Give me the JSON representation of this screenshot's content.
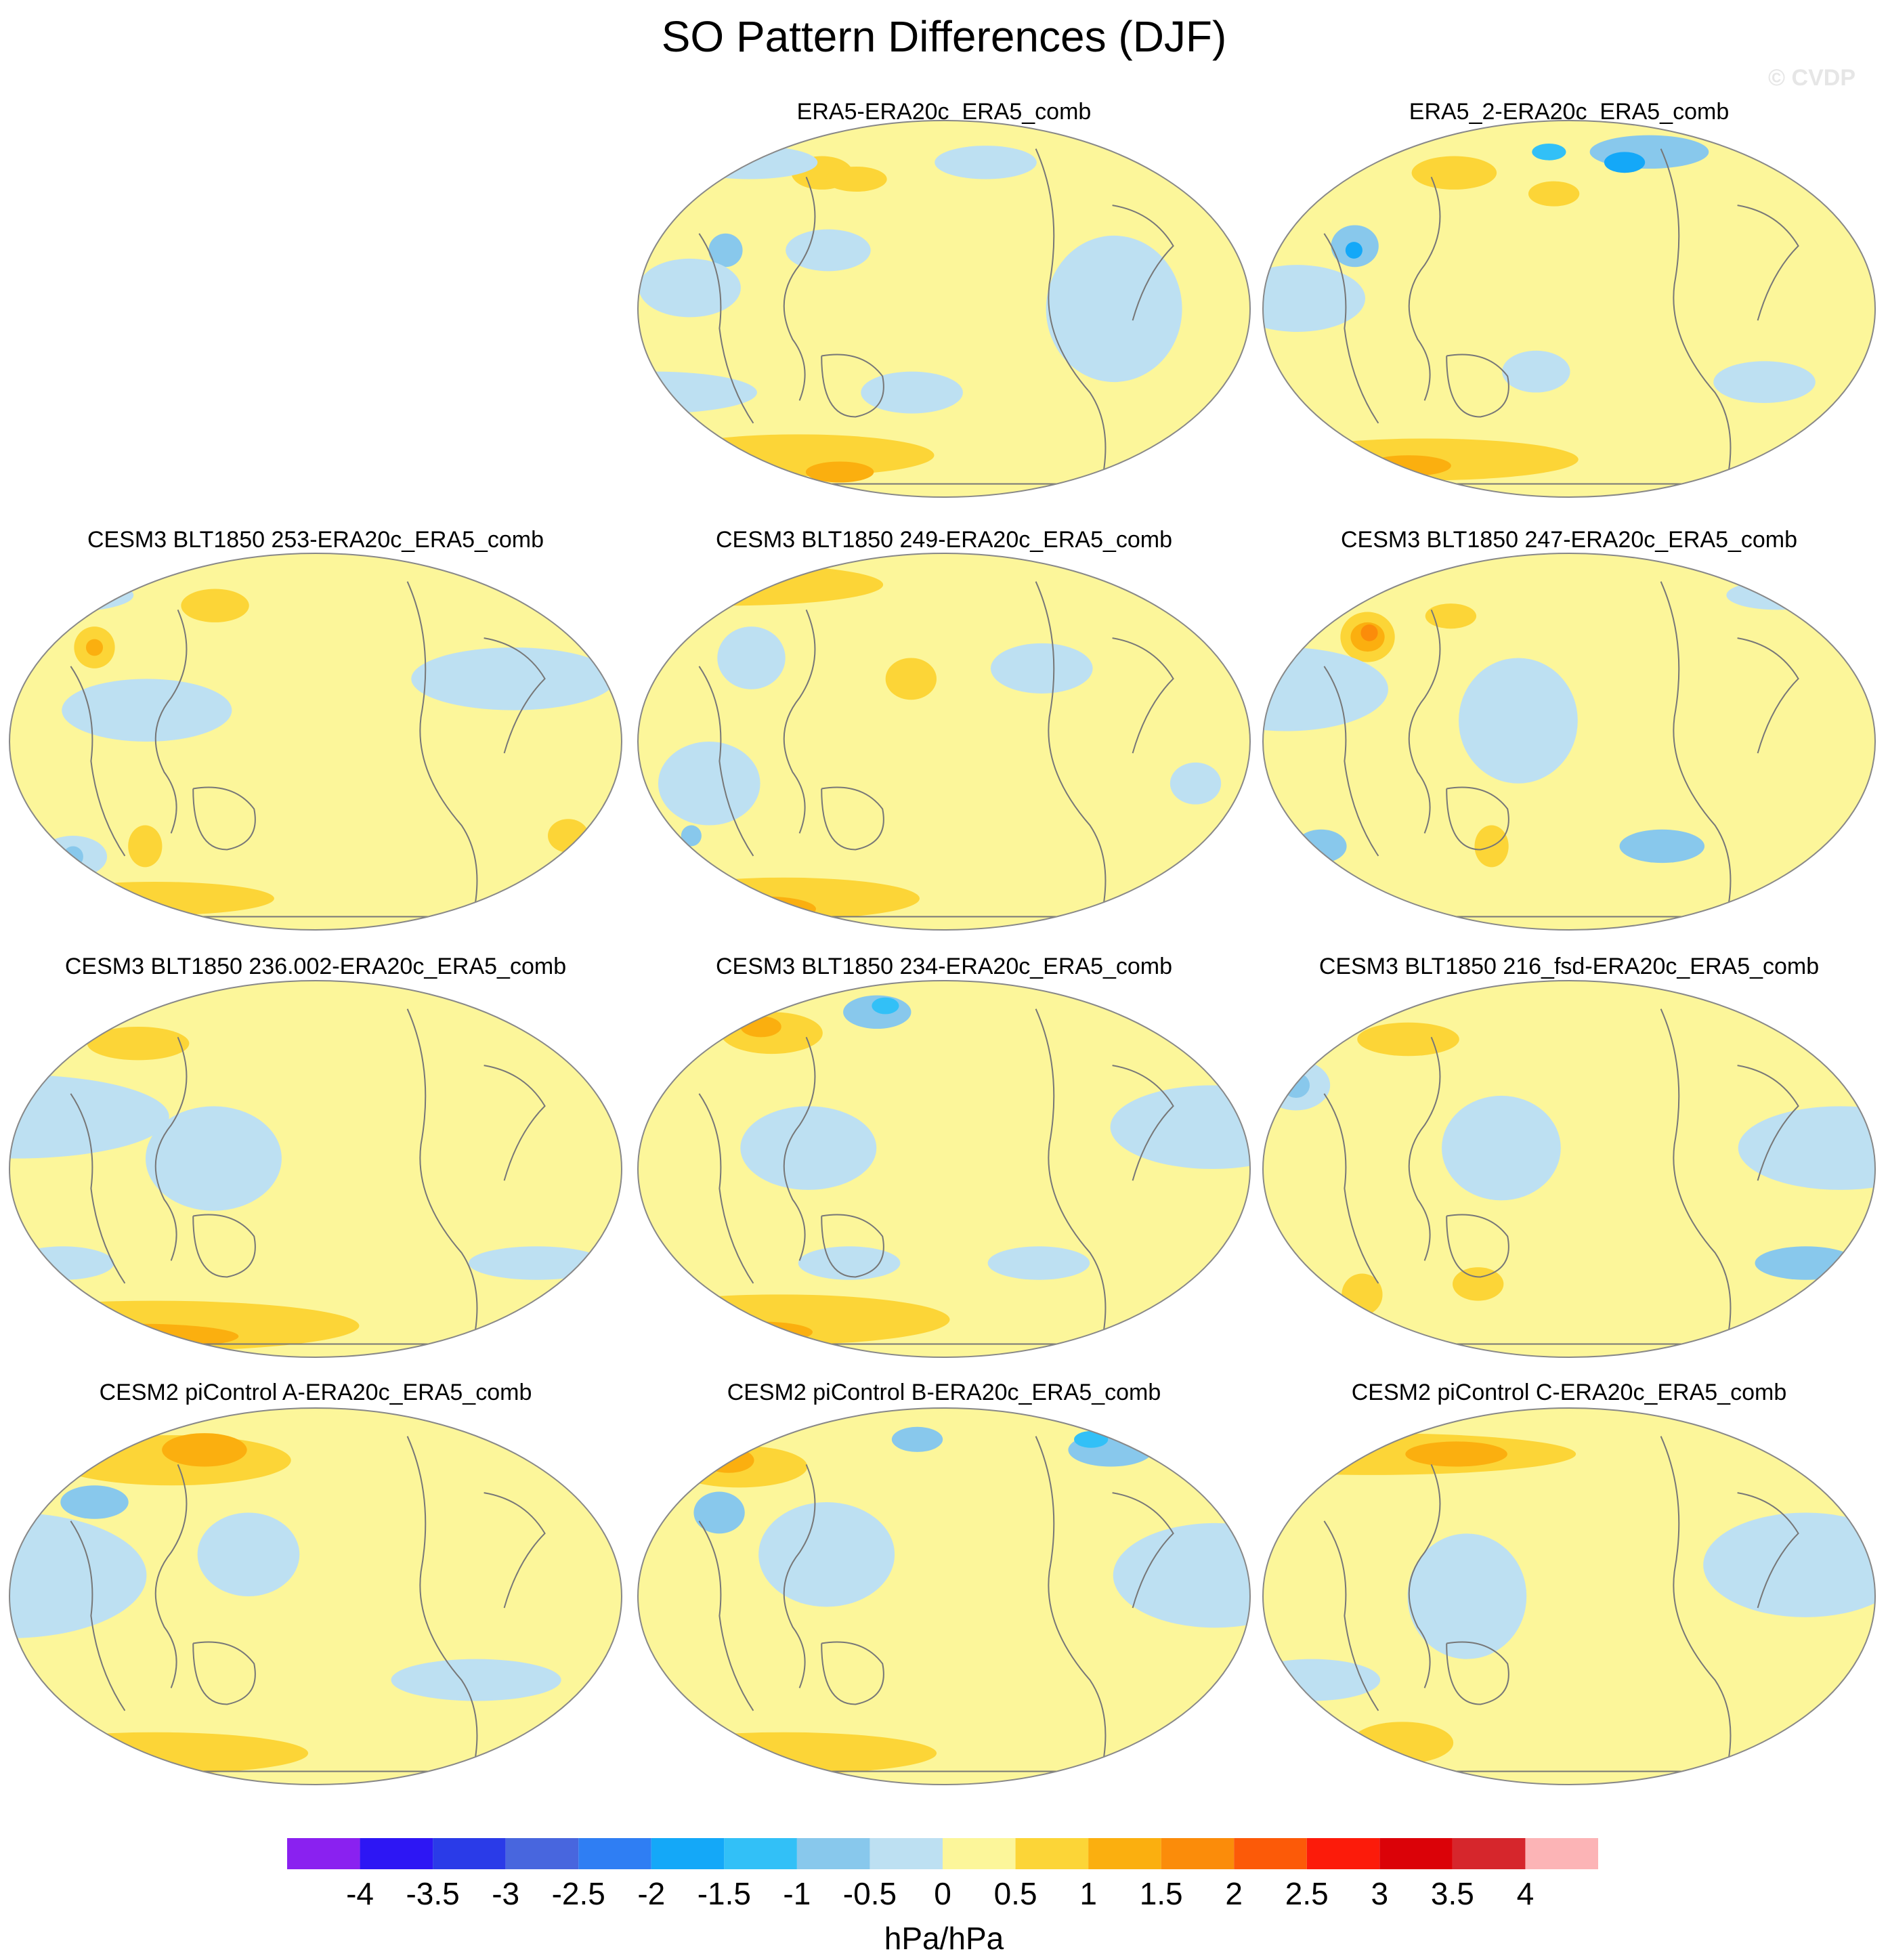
{
  "title": "SO Pattern Differences (DJF)",
  "watermark": "© CVDP",
  "chart_data": {
    "type": "contour-map-panel",
    "projection": "Robinson (Pacific-centered)",
    "season": "DJF",
    "variable": "SO pattern difference",
    "panels": [
      {
        "name": "ERA5-ERA20c_ERA5_comb",
        "row": 0,
        "col": 1,
        "blobs": [
          {
            "lon": 95,
            "lat": 65,
            "rx": 18,
            "ry": 8,
            "level": 0.75
          },
          {
            "lon": 120,
            "lat": 62,
            "rx": 18,
            "ry": 6,
            "level": 0.75
          },
          {
            "lon": 75,
            "lat": -70,
            "rx": 80,
            "ry": 10,
            "level": 0.75
          },
          {
            "lon": 100,
            "lat": -78,
            "rx": 20,
            "ry": 5,
            "level": 1.25
          },
          {
            "lon": 40,
            "lat": 70,
            "rx": 40,
            "ry": 8,
            "level": -0.25
          },
          {
            "lon": -150,
            "lat": 70,
            "rx": 30,
            "ry": 8,
            "level": -0.25
          },
          {
            "lon": 48,
            "lat": 28,
            "rx": 10,
            "ry": 8,
            "level": -0.75
          },
          {
            "lon": 110,
            "lat": 28,
            "rx": 25,
            "ry": 10,
            "level": -0.25
          },
          {
            "lon": 30,
            "lat": 10,
            "rx": 30,
            "ry": 14,
            "level": -0.25
          },
          {
            "lon": -80,
            "lat": 0,
            "rx": 40,
            "ry": 35,
            "level": -0.25
          },
          {
            "lon": 0,
            "lat": -40,
            "rx": 60,
            "ry": 10,
            "level": -0.25
          },
          {
            "lon": 160,
            "lat": -40,
            "rx": 30,
            "ry": 10,
            "level": -0.25
          }
        ]
      },
      {
        "name": "ERA5_2-ERA20c_ERA5_comb",
        "row": 0,
        "col": 2,
        "blobs": [
          {
            "lon": 100,
            "lat": 65,
            "rx": 25,
            "ry": 8,
            "level": 0.75
          },
          {
            "lon": 170,
            "lat": 55,
            "rx": 15,
            "ry": 6,
            "level": 0.75
          },
          {
            "lon": 75,
            "lat": -72,
            "rx": 90,
            "ry": 10,
            "level": 0.75
          },
          {
            "lon": 60,
            "lat": -75,
            "rx": 25,
            "ry": 5,
            "level": 1.25
          },
          {
            "lon": -120,
            "lat": 75,
            "rx": 35,
            "ry": 8,
            "level": -0.75
          },
          {
            "lon": -140,
            "lat": 70,
            "rx": 12,
            "ry": 5,
            "level": -1.75
          },
          {
            "lon": 165,
            "lat": 75,
            "rx": 10,
            "ry": 4,
            "level": -1.25
          },
          {
            "lon": 50,
            "lat": 30,
            "rx": 14,
            "ry": 10,
            "level": -0.75
          },
          {
            "lon": 50,
            "lat": 28,
            "rx": 5,
            "ry": 4,
            "level": -1.75
          },
          {
            "lon": 20,
            "lat": 5,
            "rx": 40,
            "ry": 16,
            "level": -0.25
          },
          {
            "lon": -60,
            "lat": -35,
            "rx": 30,
            "ry": 10,
            "level": -0.25
          },
          {
            "lon": 160,
            "lat": -30,
            "rx": 20,
            "ry": 10,
            "level": -0.25
          }
        ]
      },
      {
        "name": "CESM3 BLT1850 253-ERA20c_ERA5_comb",
        "row": 1,
        "col": 0,
        "blobs": [
          {
            "lon": 40,
            "lat": 45,
            "rx": 12,
            "ry": 10,
            "level": 0.75
          },
          {
            "lon": 40,
            "lat": 45,
            "rx": 5,
            "ry": 4,
            "level": 1.25
          },
          {
            "lon": 110,
            "lat": 65,
            "rx": 20,
            "ry": 8,
            "level": 0.75
          },
          {
            "lon": 60,
            "lat": -75,
            "rx": 70,
            "ry": 8,
            "level": 0.75
          },
          {
            "lon": -20,
            "lat": -45,
            "rx": 12,
            "ry": 8,
            "level": 0.75
          },
          {
            "lon": 70,
            "lat": -50,
            "rx": 10,
            "ry": 10,
            "level": 0.75
          },
          {
            "lon": 0,
            "lat": 70,
            "rx": 40,
            "ry": 8,
            "level": -0.25
          },
          {
            "lon": -30,
            "lat": 85,
            "rx": 8,
            "ry": 3,
            "level": -1.25
          },
          {
            "lon": -60,
            "lat": 30,
            "rx": 60,
            "ry": 15,
            "level": -0.25
          },
          {
            "lon": 80,
            "lat": 15,
            "rx": 50,
            "ry": 15,
            "level": -0.25
          },
          {
            "lon": 20,
            "lat": -55,
            "rx": 20,
            "ry": 10,
            "level": -0.25
          },
          {
            "lon": 20,
            "lat": -55,
            "rx": 6,
            "ry": 5,
            "level": -0.75
          }
        ]
      },
      {
        "name": "CESM3 BLT1850 249-ERA20c_ERA5_comb",
        "row": 1,
        "col": 1,
        "blobs": [
          {
            "lon": 20,
            "lat": 75,
            "rx": 90,
            "ry": 10,
            "level": 0.75
          },
          {
            "lon": 60,
            "lat": -75,
            "rx": 80,
            "ry": 10,
            "level": 0.75
          },
          {
            "lon": 40,
            "lat": -80,
            "rx": 30,
            "ry": 6,
            "level": 1.25
          },
          {
            "lon": 160,
            "lat": 30,
            "rx": 15,
            "ry": 10,
            "level": 0.75
          },
          {
            "lon": -120,
            "lat": 35,
            "rx": 30,
            "ry": 12,
            "level": -0.25
          },
          {
            "lon": 60,
            "lat": 40,
            "rx": 20,
            "ry": 15,
            "level": -0.25
          },
          {
            "lon": 40,
            "lat": -20,
            "rx": 30,
            "ry": 20,
            "level": -0.25
          },
          {
            "lon": 20,
            "lat": -45,
            "rx": 6,
            "ry": 5,
            "level": -0.75
          },
          {
            "lon": -30,
            "lat": -20,
            "rx": 15,
            "ry": 10,
            "level": -0.25
          }
        ]
      },
      {
        "name": "CESM3 BLT1850 247-ERA20c_ERA5_comb",
        "row": 1,
        "col": 2,
        "blobs": [
          {
            "lon": 50,
            "lat": 50,
            "rx": 16,
            "ry": 12,
            "level": 0.75
          },
          {
            "lon": 50,
            "lat": 50,
            "rx": 10,
            "ry": 7,
            "level": 1.25
          },
          {
            "lon": 50,
            "lat": 52,
            "rx": 5,
            "ry": 4,
            "level": 1.75
          },
          {
            "lon": 100,
            "lat": 60,
            "rx": 15,
            "ry": 6,
            "level": 0.75
          },
          {
            "lon": 130,
            "lat": -50,
            "rx": 10,
            "ry": 10,
            "level": 0.75
          },
          {
            "lon": -30,
            "lat": 70,
            "rx": 30,
            "ry": 7,
            "level": -0.25
          },
          {
            "lon": 10,
            "lat": 25,
            "rx": 60,
            "ry": 20,
            "level": -0.25
          },
          {
            "lon": 150,
            "lat": 10,
            "rx": 35,
            "ry": 30,
            "level": -0.25
          },
          {
            "lon": -120,
            "lat": -50,
            "rx": 25,
            "ry": 8,
            "level": -0.75
          },
          {
            "lon": 20,
            "lat": -50,
            "rx": 15,
            "ry": 8,
            "level": -0.75
          }
        ]
      },
      {
        "name": "CESM3 BLT1850 236.002-ERA20c_ERA5_comb",
        "row": 2,
        "col": 0,
        "blobs": [
          {
            "lon": 60,
            "lat": -75,
            "rx": 120,
            "ry": 12,
            "level": 0.75
          },
          {
            "lon": 40,
            "lat": -80,
            "rx": 60,
            "ry": 6,
            "level": 1.25
          },
          {
            "lon": 60,
            "lat": 60,
            "rx": 30,
            "ry": 8,
            "level": 0.75
          },
          {
            "lon": 0,
            "lat": 78,
            "rx": 30,
            "ry": 5,
            "level": -0.75
          },
          {
            "lon": 0,
            "lat": 25,
            "rx": 90,
            "ry": 20,
            "level": -0.25
          },
          {
            "lon": 120,
            "lat": 5,
            "rx": 40,
            "ry": 25,
            "level": -0.25
          },
          {
            "lon": -40,
            "lat": -45,
            "rx": 40,
            "ry": 8,
            "level": -0.25
          },
          {
            "lon": 20,
            "lat": -45,
            "rx": 30,
            "ry": 8,
            "level": -0.25
          }
        ]
      },
      {
        "name": "CESM3 BLT1850 234-ERA20c_ERA5_comb",
        "row": 2,
        "col": 1,
        "blobs": [
          {
            "lon": 60,
            "lat": 65,
            "rx": 30,
            "ry": 10,
            "level": 0.75
          },
          {
            "lon": 50,
            "lat": 68,
            "rx": 12,
            "ry": 5,
            "level": 1.25
          },
          {
            "lon": 60,
            "lat": -72,
            "rx": 100,
            "ry": 12,
            "level": 0.75
          },
          {
            "lon": 40,
            "lat": -78,
            "rx": 30,
            "ry": 5,
            "level": 1.25
          },
          {
            "lon": 130,
            "lat": 75,
            "rx": 20,
            "ry": 8,
            "level": -0.75
          },
          {
            "lon": 135,
            "lat": 78,
            "rx": 8,
            "ry": 4,
            "level": -1.25
          },
          {
            "lon": -20,
            "lat": 20,
            "rx": 60,
            "ry": 20,
            "level": -0.25
          },
          {
            "lon": 100,
            "lat": 10,
            "rx": 40,
            "ry": 20,
            "level": -0.25
          },
          {
            "lon": -120,
            "lat": -45,
            "rx": 30,
            "ry": 8,
            "level": -0.25
          },
          {
            "lon": 120,
            "lat": -45,
            "rx": 30,
            "ry": 8,
            "level": -0.25
          }
        ]
      },
      {
        "name": "CESM3 BLT1850 216_fsd-ERA20c_ERA5_comb",
        "row": 2,
        "col": 2,
        "blobs": [
          {
            "lon": 70,
            "lat": 62,
            "rx": 30,
            "ry": 8,
            "level": 0.75
          },
          {
            "lon": 40,
            "lat": -60,
            "rx": 12,
            "ry": 10,
            "level": 0.75
          },
          {
            "lon": 120,
            "lat": -55,
            "rx": 15,
            "ry": 8,
            "level": 0.75
          },
          {
            "lon": 10,
            "lat": 40,
            "rx": 20,
            "ry": 12,
            "level": -0.25
          },
          {
            "lon": 10,
            "lat": 40,
            "rx": 8,
            "ry": 6,
            "level": -0.75
          },
          {
            "lon": -20,
            "lat": 10,
            "rx": 60,
            "ry": 20,
            "level": -0.25
          },
          {
            "lon": -30,
            "lat": -45,
            "rx": 30,
            "ry": 8,
            "level": -0.75
          },
          {
            "lon": 140,
            "lat": 10,
            "rx": 35,
            "ry": 25,
            "level": -0.25
          }
        ]
      },
      {
        "name": "CESM2 piControl A-ERA20c_ERA5_comb",
        "row": 3,
        "col": 0,
        "blobs": [
          {
            "lon": 80,
            "lat": 65,
            "rx": 70,
            "ry": 12,
            "level": 0.75
          },
          {
            "lon": 100,
            "lat": 70,
            "rx": 25,
            "ry": 8,
            "level": 1.25
          },
          {
            "lon": 60,
            "lat": -75,
            "rx": 90,
            "ry": 10,
            "level": 0.75
          },
          {
            "lon": 40,
            "lat": 45,
            "rx": 20,
            "ry": 8,
            "level": -0.75
          },
          {
            "lon": 0,
            "lat": 10,
            "rx": 80,
            "ry": 30,
            "level": -0.25
          },
          {
            "lon": 140,
            "lat": 20,
            "rx": 30,
            "ry": 20,
            "level": -0.25
          },
          {
            "lon": -80,
            "lat": -40,
            "rx": 50,
            "ry": 10,
            "level": -0.25
          }
        ]
      },
      {
        "name": "CESM2 piControl B-ERA20c_ERA5_comb",
        "row": 3,
        "col": 1,
        "blobs": [
          {
            "lon": 40,
            "lat": 62,
            "rx": 40,
            "ry": 10,
            "level": 0.75
          },
          {
            "lon": 30,
            "lat": 65,
            "rx": 15,
            "ry": 6,
            "level": 1.25
          },
          {
            "lon": 60,
            "lat": -75,
            "rx": 90,
            "ry": 10,
            "level": 0.75
          },
          {
            "lon": -60,
            "lat": 70,
            "rx": 25,
            "ry": 8,
            "level": -0.75
          },
          {
            "lon": -70,
            "lat": 75,
            "rx": 10,
            "ry": 4,
            "level": -1.25
          },
          {
            "lon": 160,
            "lat": 75,
            "rx": 15,
            "ry": 6,
            "level": -0.75
          },
          {
            "lon": 40,
            "lat": 40,
            "rx": 15,
            "ry": 10,
            "level": -0.75
          },
          {
            "lon": -20,
            "lat": 10,
            "rx": 60,
            "ry": 25,
            "level": -0.25
          },
          {
            "lon": 110,
            "lat": 20,
            "rx": 40,
            "ry": 25,
            "level": -0.25
          }
        ]
      },
      {
        "name": "CESM2 piControl C-ERA20c_ERA5_comb",
        "row": 3,
        "col": 2,
        "blobs": [
          {
            "lon": 40,
            "lat": 68,
            "rx": 120,
            "ry": 10,
            "level": 0.75
          },
          {
            "lon": 100,
            "lat": 68,
            "rx": 30,
            "ry": 6,
            "level": 1.25
          },
          {
            "lon": 60,
            "lat": -70,
            "rx": 30,
            "ry": 10,
            "level": 0.75
          },
          {
            "lon": -40,
            "lat": 15,
            "rx": 60,
            "ry": 25,
            "level": -0.25
          },
          {
            "lon": 120,
            "lat": 0,
            "rx": 35,
            "ry": 30,
            "level": -0.25
          },
          {
            "lon": 20,
            "lat": -40,
            "rx": 40,
            "ry": 10,
            "level": -0.25
          }
        ]
      }
    ],
    "colorbar": {
      "label": "hPa/hPa",
      "tick_labels": [
        "-4",
        "-3.5",
        "-3",
        "-2.5",
        "-2",
        "-1.5",
        "-1",
        "-0.5",
        "0",
        "0.5",
        "1",
        "1.5",
        "2",
        "2.5",
        "3",
        "3.5",
        "4"
      ],
      "bins": [
        {
          "level": -4.25,
          "color": "#8a21f0"
        },
        {
          "level": -3.75,
          "color": "#2d16f4"
        },
        {
          "level": -3.25,
          "color": "#2a3be8"
        },
        {
          "level": -2.75,
          "color": "#4866de"
        },
        {
          "level": -2.25,
          "color": "#2f7ef3"
        },
        {
          "level": -1.75,
          "color": "#14a8f8"
        },
        {
          "level": -1.25,
          "color": "#32c0f7"
        },
        {
          "level": -0.75,
          "color": "#88c8ec"
        },
        {
          "level": -0.25,
          "color": "#bde0f2"
        },
        {
          "level": 0.25,
          "color": "#fcf69a"
        },
        {
          "level": 0.75,
          "color": "#fcd537"
        },
        {
          "level": 1.25,
          "color": "#fbaf0f"
        },
        {
          "level": 1.75,
          "color": "#fb8c0a"
        },
        {
          "level": 2.25,
          "color": "#fc5a08"
        },
        {
          "level": 2.75,
          "color": "#fc1b0a"
        },
        {
          "level": 3.25,
          "color": "#db0208"
        },
        {
          "level": 3.75,
          "color": "#d6262c"
        },
        {
          "level": 4.25,
          "color": "#fcb4b6"
        }
      ]
    }
  }
}
